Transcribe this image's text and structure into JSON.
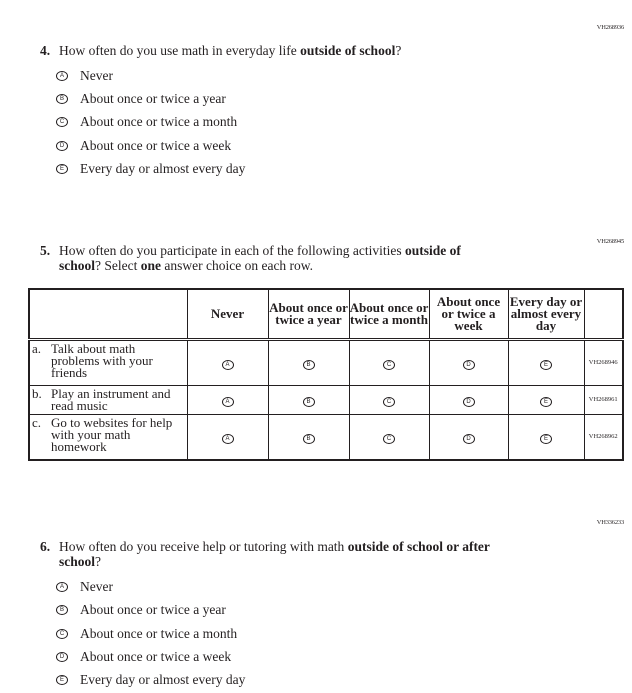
{
  "bubble_letters": [
    "A",
    "B",
    "C",
    "D",
    "E"
  ],
  "q4": {
    "code": "VH268936",
    "number": "4.",
    "text": [
      {
        "t": "How often do you use math in everyday life "
      },
      {
        "t": "outside of school",
        "b": true
      },
      {
        "t": "?"
      }
    ],
    "options": [
      "Never",
      "About once or twice a year",
      "About once or twice a month",
      "About once or twice a week",
      "Every day or almost every day"
    ]
  },
  "q5": {
    "code": "VH268945",
    "number": "5.",
    "text_line1": [
      {
        "t": "How often do you participate in each of the following activities "
      },
      {
        "t": "outside of",
        "b": true
      }
    ],
    "text_line2": [
      {
        "t": "school",
        "b": true
      },
      {
        "t": "? Select "
      },
      {
        "t": "one",
        "b": true
      },
      {
        "t": " answer choice on each row."
      }
    ],
    "columns": [
      "Never",
      "About once or twice a year",
      "About once or twice a month",
      "About once or twice a week",
      "Every day or almost every day"
    ],
    "rows": [
      {
        "letter": "a.",
        "label": "Talk about math problems with your friends",
        "code": "VH268946"
      },
      {
        "letter": "b.",
        "label": "Play an instrument and read music",
        "code": "VH268961"
      },
      {
        "letter": "c.",
        "label": "Go to websites for help with your math homework",
        "code": "VH268962"
      }
    ]
  },
  "q6": {
    "code": "VH336233",
    "number": "6.",
    "text_line1": [
      {
        "t": "How often do you receive help or tutoring with math "
      },
      {
        "t": "outside of school or after",
        "b": true
      }
    ],
    "text_line2": [
      {
        "t": "school",
        "b": true
      },
      {
        "t": "?"
      }
    ],
    "options": [
      "Never",
      "About once or twice a year",
      "About once or twice a month",
      "About once or twice a week",
      "Every day or almost every day"
    ]
  }
}
